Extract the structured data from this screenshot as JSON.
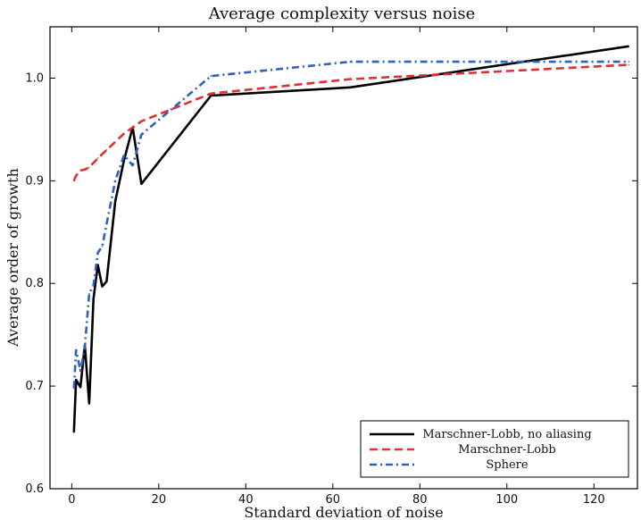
{
  "chart_data": {
    "type": "line",
    "title": "Average complexity versus noise",
    "xlabel": "Standard deviation of noise",
    "ylabel": "Average order of growth",
    "xlim": [
      -5,
      130
    ],
    "ylim": [
      0.6,
      1.05
    ],
    "xticks": [
      0,
      20,
      40,
      60,
      80,
      100,
      120
    ],
    "yticks": [
      0.6,
      0.7,
      0.8,
      0.9,
      1.0
    ],
    "xtick_labels": [
      "0",
      "20",
      "40",
      "60",
      "80",
      "100",
      "120"
    ],
    "ytick_labels": [
      "0.6",
      "0.7",
      "0.8",
      "0.9",
      "1.0"
    ],
    "grid": false,
    "legend_position": "bottom-right",
    "series": [
      {
        "name": "Marschner-Lobb, no aliasing",
        "color": "#000000",
        "dash": "solid",
        "x": [
          0.5,
          1,
          2,
          3,
          4,
          5,
          6,
          7,
          8,
          10,
          12,
          14,
          16,
          32,
          64,
          128
        ],
        "y": [
          0.655,
          0.706,
          0.699,
          0.74,
          0.683,
          0.785,
          0.818,
          0.797,
          0.802,
          0.88,
          0.92,
          0.952,
          0.897,
          0.983,
          0.991,
          1.031
        ]
      },
      {
        "name": "Marschner-Lobb",
        "color": "#e03030",
        "dash": "dashed",
        "x": [
          0.5,
          1,
          2,
          3,
          4,
          6,
          8,
          12,
          16,
          32,
          64,
          128
        ],
        "y": [
          0.9,
          0.905,
          0.91,
          0.911,
          0.913,
          0.922,
          0.93,
          0.946,
          0.958,
          0.985,
          0.999,
          1.013
        ]
      },
      {
        "name": "Sphere",
        "color": "#3060c0",
        "dash": "dash-dot",
        "x": [
          0.5,
          1,
          2,
          3,
          4,
          5,
          6,
          7,
          8,
          10,
          12,
          14,
          16,
          32,
          64,
          128
        ],
        "y": [
          0.698,
          0.735,
          0.715,
          0.738,
          0.79,
          0.798,
          0.83,
          0.836,
          0.858,
          0.9,
          0.925,
          0.915,
          0.945,
          1.002,
          1.016,
          1.016
        ]
      }
    ]
  }
}
